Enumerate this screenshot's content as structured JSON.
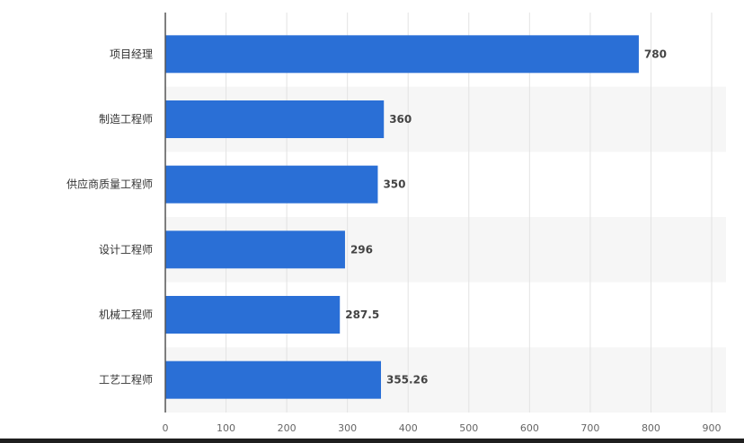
{
  "chart_data": {
    "type": "bar",
    "orientation": "horizontal",
    "categories": [
      "项目经理",
      "制造工程师",
      "供应商质量工程师",
      "设计工程师",
      "机械工程师",
      "工艺工程师"
    ],
    "values": [
      780,
      360,
      350,
      296,
      287.5,
      355.26
    ],
    "value_labels": [
      "780",
      "360",
      "350",
      "296",
      "287.5",
      "355.26"
    ],
    "title": "",
    "xlabel": "",
    "ylabel": "",
    "xlim": [
      0,
      900
    ],
    "x_ticks": [
      "0",
      "100",
      "200",
      "300",
      "400",
      "500",
      "600",
      "700",
      "800",
      "900"
    ],
    "grid": "vertical",
    "legend": "none",
    "colors": {
      "bar": "#2a6fd6",
      "grid": "#e3e3e3",
      "band": "#f6f6f6"
    }
  }
}
